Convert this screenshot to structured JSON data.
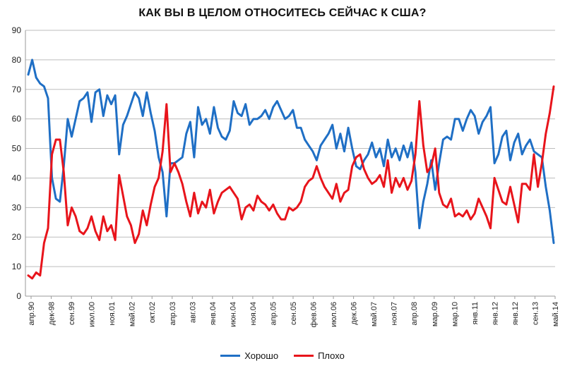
{
  "chart_data": {
    "type": "line",
    "title": "КАК ВЫ В ЦЕЛОМ ОТНОСИТЕСЬ СЕЙЧАС К США?",
    "ylim": [
      0,
      90
    ],
    "yticks": [
      0,
      10,
      20,
      30,
      40,
      50,
      60,
      70,
      80,
      90
    ],
    "grid": true,
    "legend_position": "bottom",
    "x_tick_labels": [
      "апр.90",
      "дек-98",
      "сен.99",
      "июл.00",
      "ноя.01",
      "май.02",
      "окт.02",
      "апр.03",
      "авг.03",
      "янв.04",
      "июн.04",
      "ноя.04",
      "апр.05",
      "сен.05",
      "фев.06",
      "июл.06",
      "дек.06",
      "май.07",
      "ноя.07",
      "апр.08",
      "мар.09",
      "мар.10",
      "янв.11",
      "янв.12",
      "янв.12",
      "сен.13",
      "май.14"
    ],
    "series": [
      {
        "name": "Хорошо",
        "color": "#1f6fc5",
        "values": [
          75,
          80,
          74,
          72,
          71,
          67,
          40,
          33,
          32,
          44,
          60,
          54,
          60,
          66,
          67,
          69,
          59,
          69,
          70,
          61,
          68,
          65,
          68,
          48,
          58,
          61,
          65,
          69,
          67,
          61,
          69,
          62,
          56,
          47,
          42,
          27,
          45,
          45,
          46,
          47,
          55,
          59,
          47,
          64,
          58,
          60,
          55,
          64,
          57,
          54,
          53,
          56,
          66,
          62,
          61,
          65,
          58,
          60,
          60,
          61,
          63,
          60,
          64,
          66,
          63,
          60,
          61,
          63,
          57,
          57,
          53,
          51,
          49,
          46,
          51,
          53,
          55,
          58,
          50,
          55,
          49,
          57,
          50,
          44,
          43,
          46,
          48,
          52,
          47,
          50,
          44,
          53,
          47,
          50,
          46,
          51,
          47,
          52,
          42,
          23,
          32,
          38,
          46,
          36,
          45,
          53,
          54,
          53,
          60,
          60,
          56,
          60,
          63,
          61,
          55,
          59,
          61,
          64,
          45,
          48,
          54,
          56,
          46,
          52,
          55,
          48,
          51,
          53,
          49,
          48,
          47,
          37,
          29,
          18
        ]
      },
      {
        "name": "Плохо",
        "color": "#e8141b",
        "values": [
          7,
          6,
          8,
          7,
          18,
          23,
          48,
          53,
          53,
          42,
          24,
          30,
          27,
          22,
          21,
          23,
          27,
          22,
          19,
          27,
          22,
          24,
          19,
          41,
          34,
          27,
          24,
          18,
          21,
          29,
          24,
          31,
          37,
          40,
          49,
          65,
          42,
          45,
          42,
          38,
          32,
          27,
          35,
          28,
          32,
          30,
          36,
          28,
          32,
          35,
          36,
          37,
          35,
          33,
          26,
          30,
          31,
          29,
          34,
          32,
          31,
          29,
          31,
          28,
          26,
          26,
          30,
          29,
          30,
          32,
          37,
          39,
          40,
          44,
          40,
          37,
          35,
          33,
          38,
          32,
          35,
          36,
          44,
          47,
          48,
          43,
          40,
          38,
          39,
          41,
          37,
          46,
          35,
          40,
          37,
          40,
          36,
          39,
          48,
          66,
          51,
          42,
          44,
          50,
          35,
          31,
          30,
          33,
          27,
          28,
          27,
          29,
          26,
          28,
          33,
          30,
          27,
          23,
          40,
          36,
          32,
          31,
          37,
          31,
          25,
          38,
          38,
          36,
          48,
          37,
          45,
          55,
          62,
          71
        ]
      }
    ]
  }
}
